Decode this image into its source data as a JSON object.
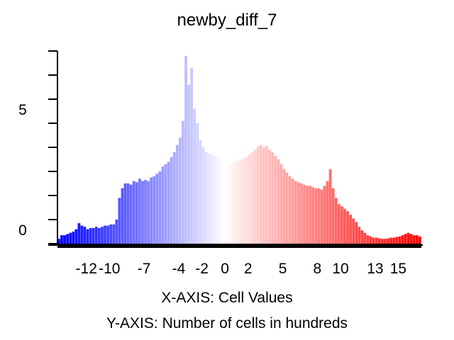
{
  "chart_data": {
    "type": "bar",
    "title": "newby_diff_7",
    "xlabel": "X-AXIS: Cell Values",
    "ylabel": "Y-AXIS: Number of cells in hundreds",
    "xlim": [
      -14.5,
      17.0
    ],
    "ylim": [
      0,
      8
    ],
    "x_ticks": [
      -12,
      -10,
      -7,
      -4,
      -2,
      0,
      2,
      5,
      8,
      10,
      13,
      15
    ],
    "y_ticks_labeled": [
      0,
      5
    ],
    "y_ticks_minor": [
      1,
      2,
      3,
      4,
      6,
      7,
      8
    ],
    "color_low": "#0000ff",
    "color_mid": "#ffffff",
    "color_high": "#ff0000",
    "bin_width": 0.25,
    "bins": [
      {
        "x": -14.5,
        "y": 0.2
      },
      {
        "x": -14.25,
        "y": 0.35
      },
      {
        "x": -14.0,
        "y": 0.35
      },
      {
        "x": -13.75,
        "y": 0.4
      },
      {
        "x": -13.5,
        "y": 0.45
      },
      {
        "x": -13.25,
        "y": 0.5
      },
      {
        "x": -13.0,
        "y": 0.6
      },
      {
        "x": -12.75,
        "y": 0.85
      },
      {
        "x": -12.5,
        "y": 0.75
      },
      {
        "x": -12.25,
        "y": 0.7
      },
      {
        "x": -12.0,
        "y": 0.6
      },
      {
        "x": -11.75,
        "y": 0.65
      },
      {
        "x": -11.5,
        "y": 0.65
      },
      {
        "x": -11.25,
        "y": 0.7
      },
      {
        "x": -11.0,
        "y": 0.65
      },
      {
        "x": -10.75,
        "y": 0.7
      },
      {
        "x": -10.5,
        "y": 0.75
      },
      {
        "x": -10.25,
        "y": 0.75
      },
      {
        "x": -10.0,
        "y": 0.8
      },
      {
        "x": -9.75,
        "y": 0.8
      },
      {
        "x": -9.5,
        "y": 1.0
      },
      {
        "x": -9.25,
        "y": 1.9
      },
      {
        "x": -9.0,
        "y": 2.3
      },
      {
        "x": -8.75,
        "y": 2.5
      },
      {
        "x": -8.5,
        "y": 2.5
      },
      {
        "x": -8.25,
        "y": 2.45
      },
      {
        "x": -8.0,
        "y": 2.6
      },
      {
        "x": -7.75,
        "y": 2.55
      },
      {
        "x": -7.5,
        "y": 2.7
      },
      {
        "x": -7.25,
        "y": 2.6
      },
      {
        "x": -7.0,
        "y": 2.65
      },
      {
        "x": -6.75,
        "y": 2.6
      },
      {
        "x": -6.5,
        "y": 2.75
      },
      {
        "x": -6.25,
        "y": 2.8
      },
      {
        "x": -6.0,
        "y": 2.9
      },
      {
        "x": -5.75,
        "y": 3.0
      },
      {
        "x": -5.5,
        "y": 3.2
      },
      {
        "x": -5.25,
        "y": 3.3
      },
      {
        "x": -5.0,
        "y": 3.4
      },
      {
        "x": -4.75,
        "y": 3.6
      },
      {
        "x": -4.5,
        "y": 3.8
      },
      {
        "x": -4.25,
        "y": 4.1
      },
      {
        "x": -4.0,
        "y": 4.4
      },
      {
        "x": -3.75,
        "y": 5.1
      },
      {
        "x": -3.5,
        "y": 7.8
      },
      {
        "x": -3.25,
        "y": 6.6
      },
      {
        "x": -3.0,
        "y": 7.3
      },
      {
        "x": -2.75,
        "y": 5.6
      },
      {
        "x": -2.5,
        "y": 5.0
      },
      {
        "x": -2.25,
        "y": 4.3
      },
      {
        "x": -2.0,
        "y": 4.0
      },
      {
        "x": -1.75,
        "y": 3.8
      },
      {
        "x": -1.5,
        "y": 3.75
      },
      {
        "x": -1.25,
        "y": 3.7
      },
      {
        "x": -1.0,
        "y": 3.65
      },
      {
        "x": -0.75,
        "y": 3.55
      },
      {
        "x": -0.5,
        "y": 3.45
      },
      {
        "x": -0.25,
        "y": 3.3
      },
      {
        "x": 0.0,
        "y": 3.2
      },
      {
        "x": 0.25,
        "y": 3.25
      },
      {
        "x": 0.5,
        "y": 3.35
      },
      {
        "x": 0.75,
        "y": 3.4
      },
      {
        "x": 1.0,
        "y": 3.45
      },
      {
        "x": 1.25,
        "y": 3.5
      },
      {
        "x": 1.5,
        "y": 3.55
      },
      {
        "x": 1.75,
        "y": 3.6
      },
      {
        "x": 2.0,
        "y": 3.7
      },
      {
        "x": 2.25,
        "y": 3.8
      },
      {
        "x": 2.5,
        "y": 3.9
      },
      {
        "x": 2.75,
        "y": 4.05
      },
      {
        "x": 3.0,
        "y": 4.1
      },
      {
        "x": 3.25,
        "y": 4.0
      },
      {
        "x": 3.5,
        "y": 4.05
      },
      {
        "x": 3.75,
        "y": 3.9
      },
      {
        "x": 4.0,
        "y": 3.8
      },
      {
        "x": 4.25,
        "y": 3.65
      },
      {
        "x": 4.5,
        "y": 3.5
      },
      {
        "x": 4.75,
        "y": 3.3
      },
      {
        "x": 5.0,
        "y": 3.1
      },
      {
        "x": 5.25,
        "y": 2.95
      },
      {
        "x": 5.5,
        "y": 2.8
      },
      {
        "x": 5.75,
        "y": 2.7
      },
      {
        "x": 6.0,
        "y": 2.6
      },
      {
        "x": 6.25,
        "y": 2.55
      },
      {
        "x": 6.5,
        "y": 2.5
      },
      {
        "x": 6.75,
        "y": 2.45
      },
      {
        "x": 7.0,
        "y": 2.4
      },
      {
        "x": 7.25,
        "y": 2.4
      },
      {
        "x": 7.5,
        "y": 2.35
      },
      {
        "x": 7.75,
        "y": 2.3
      },
      {
        "x": 8.0,
        "y": 2.3
      },
      {
        "x": 8.25,
        "y": 2.25
      },
      {
        "x": 8.5,
        "y": 2.4
      },
      {
        "x": 8.75,
        "y": 2.6
      },
      {
        "x": 9.0,
        "y": 3.1
      },
      {
        "x": 9.25,
        "y": 2.3
      },
      {
        "x": 9.5,
        "y": 1.9
      },
      {
        "x": 9.75,
        "y": 1.65
      },
      {
        "x": 10.0,
        "y": 1.55
      },
      {
        "x": 10.25,
        "y": 1.45
      },
      {
        "x": 10.5,
        "y": 1.35
      },
      {
        "x": 10.75,
        "y": 1.2
      },
      {
        "x": 11.0,
        "y": 1.05
      },
      {
        "x": 11.25,
        "y": 0.9
      },
      {
        "x": 11.5,
        "y": 0.7
      },
      {
        "x": 11.75,
        "y": 0.55
      },
      {
        "x": 12.0,
        "y": 0.45
      },
      {
        "x": 12.25,
        "y": 0.35
      },
      {
        "x": 12.5,
        "y": 0.3
      },
      {
        "x": 12.75,
        "y": 0.25
      },
      {
        "x": 13.0,
        "y": 0.25
      },
      {
        "x": 13.25,
        "y": 0.22
      },
      {
        "x": 13.5,
        "y": 0.2
      },
      {
        "x": 13.75,
        "y": 0.2
      },
      {
        "x": 14.0,
        "y": 0.22
      },
      {
        "x": 14.25,
        "y": 0.25
      },
      {
        "x": 14.5,
        "y": 0.25
      },
      {
        "x": 14.75,
        "y": 0.28
      },
      {
        "x": 15.0,
        "y": 0.3
      },
      {
        "x": 15.25,
        "y": 0.35
      },
      {
        "x": 15.5,
        "y": 0.4
      },
      {
        "x": 15.75,
        "y": 0.45
      },
      {
        "x": 16.0,
        "y": 0.4
      },
      {
        "x": 16.25,
        "y": 0.35
      },
      {
        "x": 16.5,
        "y": 0.35
      },
      {
        "x": 16.75,
        "y": 0.3
      }
    ],
    "grid": false,
    "legend": "none"
  }
}
